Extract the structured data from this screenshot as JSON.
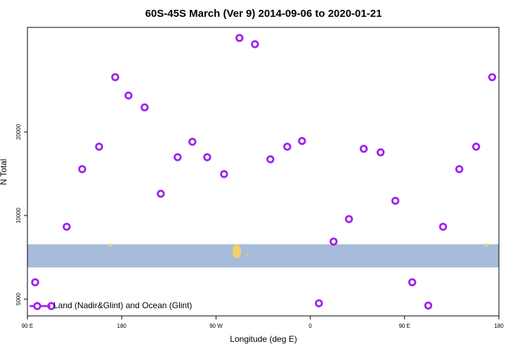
{
  "chart_data": {
    "type": "scatter",
    "title": "60S-45S March (Ver 9)   2014-09-06 to 2020-01-21",
    "x_label": "Longitude (deg E)",
    "y_label": "N Total",
    "xlim": [
      90,
      540
    ],
    "ylim": [
      4350,
      47600
    ],
    "yscale": "log",
    "xticks": [
      {
        "value": 90,
        "label": "90 E"
      },
      {
        "value": 180,
        "label": "180"
      },
      {
        "value": 270,
        "label": "90 W"
      },
      {
        "value": 360,
        "label": "0"
      },
      {
        "value": 450,
        "label": "90 E"
      },
      {
        "value": 540,
        "label": "180"
      }
    ],
    "yticks": [
      5000,
      10000,
      20000
    ],
    "legend": "lower left",
    "series": [
      {
        "name": "Land (Nadir&Glint) and Ocean (Glint)",
        "color": "#a020f0",
        "x": [
          97.4,
          112.8,
          127.5,
          142.3,
          158.4,
          173.8,
          186.5,
          201.9,
          217.3,
          233.4,
          247.5,
          261.6,
          277.7,
          292.4,
          307.2,
          321.9,
          338.0,
          352.1,
          368.2,
          382.2,
          396.9,
          411.0,
          427.1,
          441.2,
          457.3,
          472.6,
          486.7,
          502.2,
          518.3,
          533.6
        ],
        "values": [
          5750,
          4720,
          9110,
          14690,
          17700,
          31500,
          27060,
          24520,
          11980,
          16220,
          18430,
          16220,
          14100,
          43600,
          41400,
          15940,
          17700,
          18550,
          4830,
          8060,
          9710,
          17390,
          16890,
          11300,
          5750,
          4740,
          9110,
          14690,
          17700,
          31500
        ]
      }
    ]
  }
}
